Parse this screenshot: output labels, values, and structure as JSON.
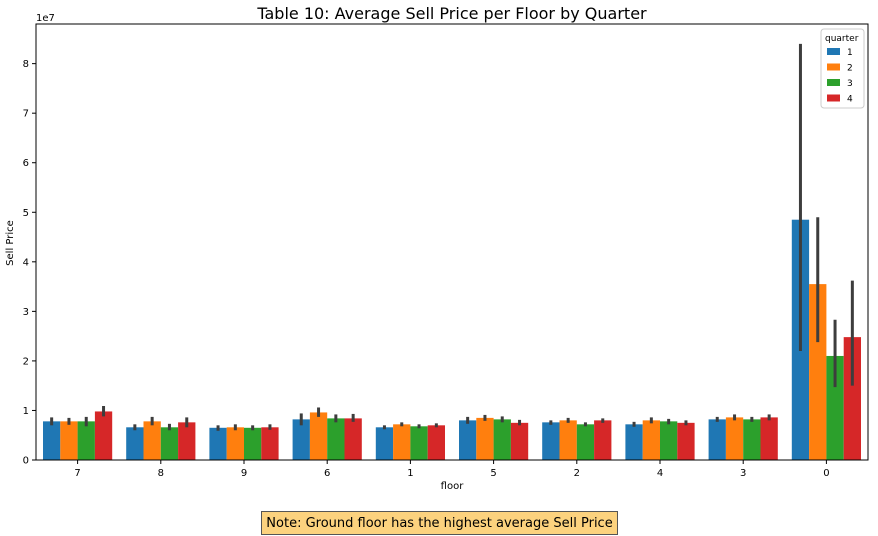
{
  "note": "Note: Ground floor has the highest average Sell Price",
  "chart_data": {
    "type": "bar",
    "title": "Table 10: Average Sell Price per Floor by Quarter",
    "xlabel": "floor",
    "ylabel": "Sell Price",
    "y_scale_label": "1e7",
    "y_scale": 10000000,
    "ylim": [
      0,
      88000000
    ],
    "yticks": [
      0,
      10000000,
      20000000,
      30000000,
      40000000,
      50000000,
      60000000,
      70000000,
      80000000
    ],
    "ytick_labels": [
      "0",
      "1",
      "2",
      "3",
      "4",
      "5",
      "6",
      "7",
      "8"
    ],
    "grid": false,
    "legend_title": "quarter",
    "legend_position": "top-right",
    "categories": [
      "7",
      "8",
      "9",
      "6",
      "1",
      "5",
      "2",
      "4",
      "3",
      "0"
    ],
    "series": [
      {
        "name": "1",
        "color": "#1f77b4",
        "values": [
          7800000,
          6600000,
          6500000,
          8200000,
          6600000,
          8000000,
          7600000,
          7200000,
          8200000,
          48500000
        ],
        "ci_low": [
          7000000,
          6000000,
          5900000,
          7000000,
          6200000,
          7300000,
          7100000,
          6700000,
          7700000,
          22000000
        ],
        "ci_high": [
          8600000,
          7200000,
          7000000,
          9400000,
          7000000,
          8700000,
          8000000,
          7700000,
          8700000,
          84000000
        ]
      },
      {
        "name": "2",
        "color": "#ff7f0e",
        "values": [
          7800000,
          7800000,
          6600000,
          9600000,
          7200000,
          8500000,
          8000000,
          8000000,
          8600000,
          35500000
        ],
        "ci_low": [
          7100000,
          7000000,
          6000000,
          8700000,
          6800000,
          7900000,
          7500000,
          7400000,
          8000000,
          23800000
        ],
        "ci_high": [
          8500000,
          8700000,
          7200000,
          10600000,
          7600000,
          9100000,
          8500000,
          8600000,
          9200000,
          49000000
        ]
      },
      {
        "name": "3",
        "color": "#2ca02c",
        "values": [
          7800000,
          6600000,
          6500000,
          8400000,
          6800000,
          8200000,
          7200000,
          7800000,
          8200000,
          21000000
        ],
        "ci_low": [
          6800000,
          6000000,
          6000000,
          7600000,
          6400000,
          7600000,
          6800000,
          7200000,
          7700000,
          14700000
        ],
        "ci_high": [
          8700000,
          7300000,
          7000000,
          9200000,
          7200000,
          8800000,
          7600000,
          8300000,
          8700000,
          28300000
        ]
      },
      {
        "name": "4",
        "color": "#d62728",
        "values": [
          9800000,
          7600000,
          6600000,
          8400000,
          7000000,
          7500000,
          8000000,
          7500000,
          8600000,
          24800000
        ],
        "ci_low": [
          8800000,
          6600000,
          6100000,
          7700000,
          6600000,
          7000000,
          7500000,
          7000000,
          8000000,
          15000000
        ],
        "ci_high": [
          10900000,
          8600000,
          7200000,
          9300000,
          7400000,
          8100000,
          8400000,
          8000000,
          9200000,
          36200000
        ]
      }
    ]
  }
}
